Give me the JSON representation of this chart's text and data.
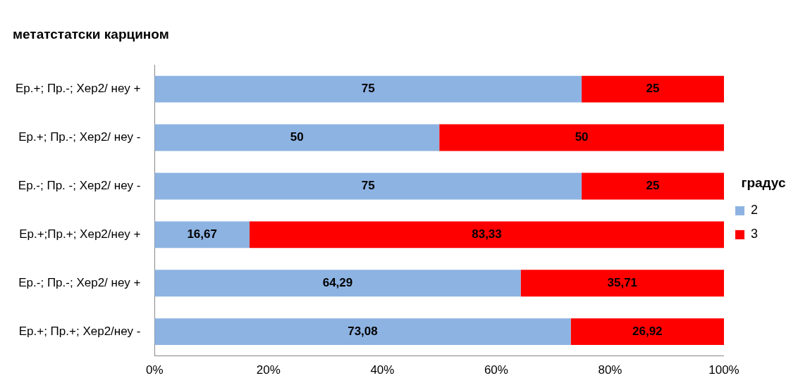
{
  "chart_data": {
    "type": "bar",
    "orientation": "horizontal",
    "stacked": true,
    "title": "метатстатски карцином",
    "legend_title": "градус",
    "legend": "right",
    "grid": false,
    "categories": [
      "Ер.+; Пр.-; Хер2/ неу +",
      "Ер.+; Пр.-; Хер2/ неу -",
      "Ер.-; Пр. -; Хер2/ неу -",
      "Ер.+;Пр.+; Хер2/неу +",
      "Ер.-; Пр.-; Хер2/ неу +",
      "Ер.+; Пр.+; Хер2/неу -"
    ],
    "series": [
      {
        "name": "2",
        "color": "#8db3e2",
        "values": [
          75,
          50,
          75,
          16.67,
          64.29,
          73.08
        ],
        "value_labels": [
          "75",
          "50",
          "75",
          "16,67",
          "64,29",
          "73,08"
        ]
      },
      {
        "name": "3",
        "color": "#ff0000",
        "values": [
          25,
          50,
          25,
          83.33,
          35.71,
          26.92
        ],
        "value_labels": [
          "25",
          "50",
          "25",
          "83,33",
          "35,71",
          "26,92"
        ]
      }
    ],
    "xlim": [
      0,
      100
    ],
    "xticks": [
      {
        "value": 0,
        "label": "0%"
      },
      {
        "value": 20,
        "label": "20%"
      },
      {
        "value": 40,
        "label": "40%"
      },
      {
        "value": 60,
        "label": "60%"
      },
      {
        "value": 80,
        "label": "80%"
      },
      {
        "value": 100,
        "label": "100%"
      }
    ]
  }
}
